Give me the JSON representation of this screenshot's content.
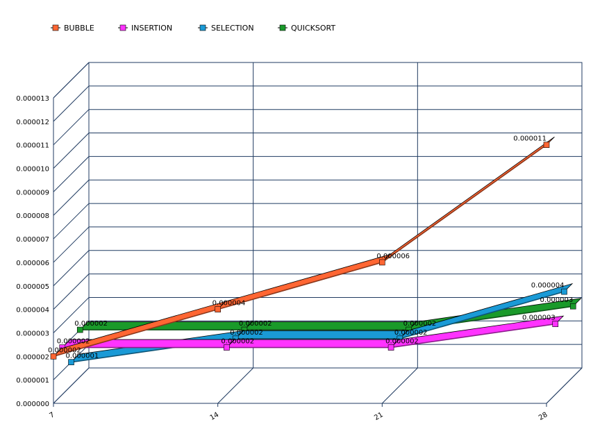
{
  "chart_data": {
    "type": "line",
    "variant": "3d-ribbon",
    "categories": [
      "7",
      "14",
      "21",
      "28"
    ],
    "ylim": [
      0,
      1.3e-05
    ],
    "yticks": [
      "0.000000",
      "0.000001",
      "0.000002",
      "0.000003",
      "0.000004",
      "0.000005",
      "0.000006",
      "0.000007",
      "0.000008",
      "0.000009",
      "0.000010",
      "0.000011",
      "0.000012",
      "0.000013"
    ],
    "grid": true,
    "legend_position": "top-left",
    "series": [
      {
        "name": "BUBBLE",
        "color": "#ff6633",
        "values": [
          2e-06,
          4e-06,
          6e-06,
          1.1e-05
        ],
        "labels": [
          "0.000002",
          "0.000004",
          "0.000006",
          "0.000011"
        ]
      },
      {
        "name": "INSERTION",
        "color": "#ff33ff",
        "values": [
          2e-06,
          2e-06,
          2e-06,
          3e-06
        ],
        "labels": [
          "0.000002",
          "0.000002",
          "0.000002",
          "0.000003"
        ]
      },
      {
        "name": "SELECTION",
        "color": "#1a9ad6",
        "values": [
          1e-06,
          2e-06,
          2e-06,
          4e-06
        ],
        "labels": [
          "0.000001",
          "0.000002",
          "0.000002",
          "0.000004"
        ]
      },
      {
        "name": "QUICKSORT",
        "color": "#1a9a2a",
        "values": [
          2e-06,
          2e-06,
          2e-06,
          3e-06
        ],
        "labels": [
          "0.000002",
          "0.000002",
          "0.000002",
          "0.000003"
        ]
      }
    ]
  }
}
